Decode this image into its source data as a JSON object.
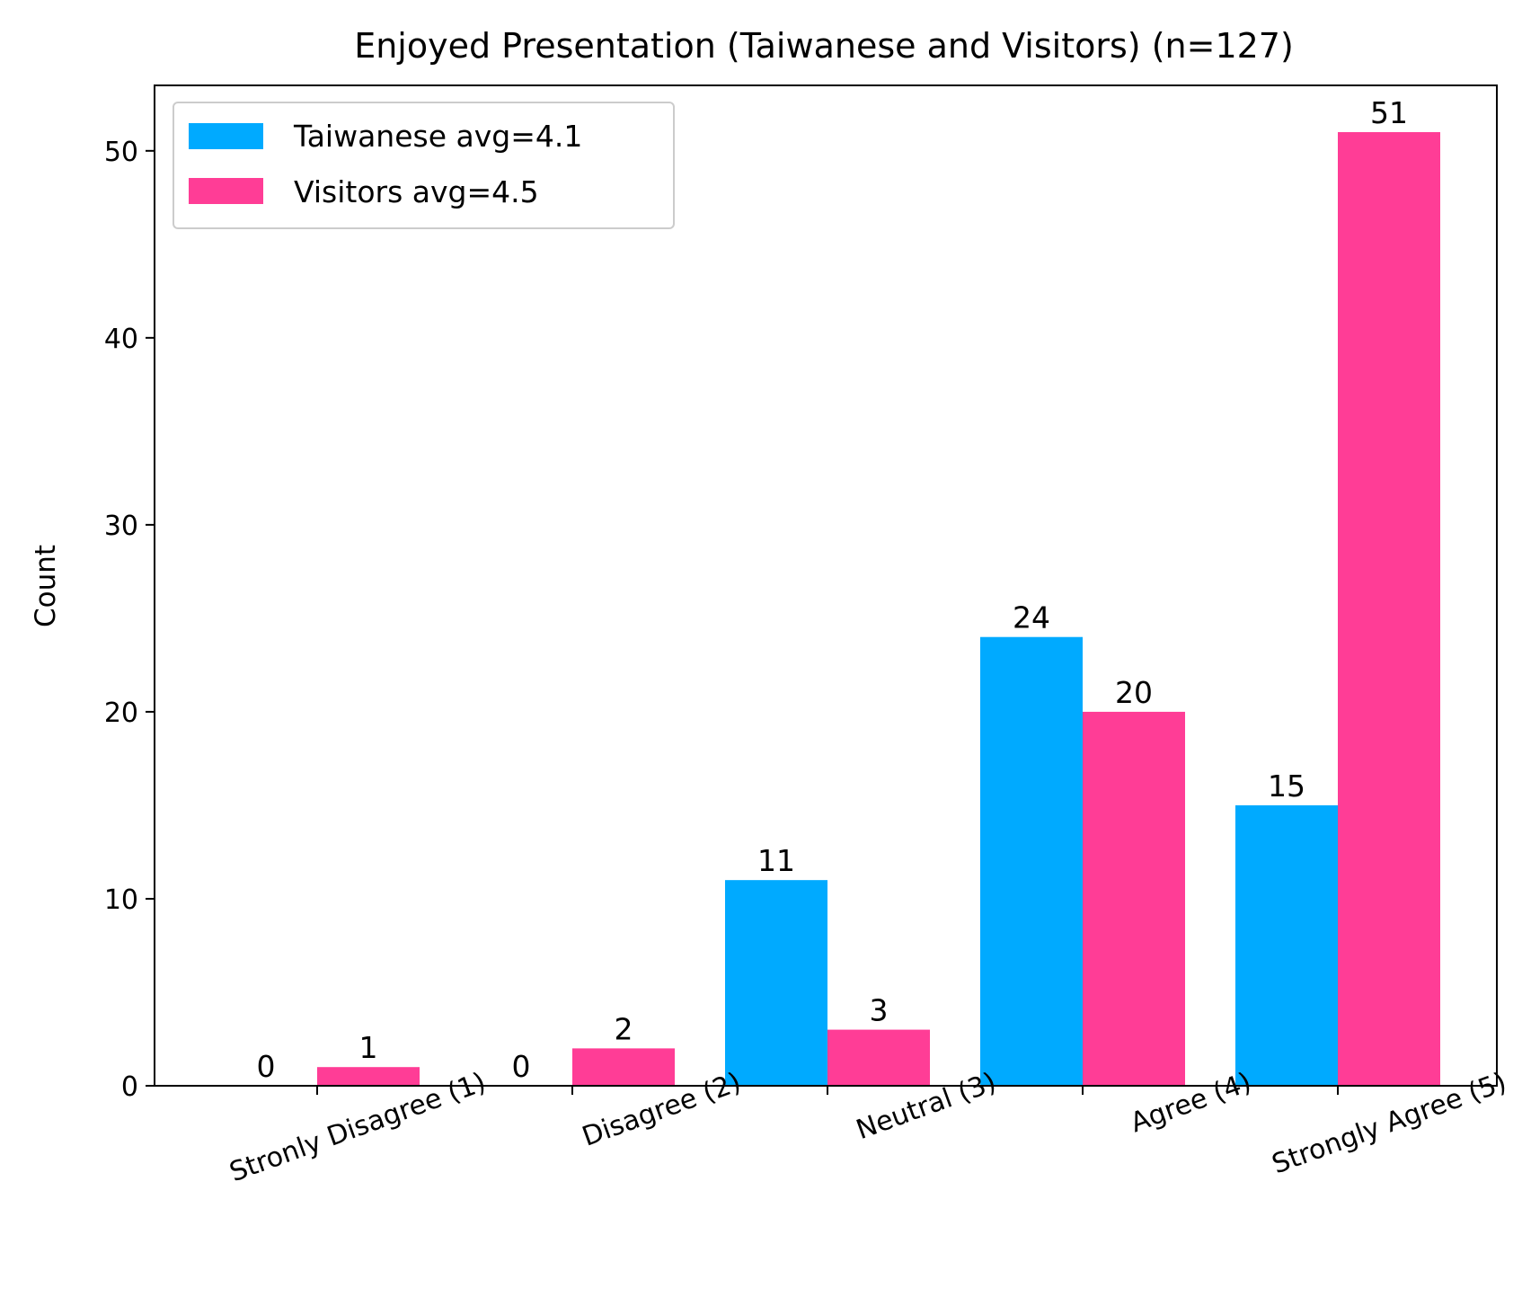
{
  "chart_data": {
    "type": "bar",
    "title": "Enjoyed Presentation (Taiwanese and Visitors) (n=127)",
    "xlabel": "",
    "ylabel": "Count",
    "categories": [
      "Stronly Disagree (1)",
      "Disagree (2)",
      "Neutral (3)",
      "Agree (4)",
      "Strongly Agree (5)"
    ],
    "series": [
      {
        "name": "Taiwanese avg=4.1",
        "color": "#00aaff",
        "values": [
          0,
          0,
          11,
          24,
          15
        ]
      },
      {
        "name": "Visitors avg=4.5",
        "color": "#ff3d96",
        "values": [
          1,
          2,
          3,
          20,
          51
        ]
      }
    ],
    "yticks": [
      0,
      10,
      20,
      30,
      40,
      50
    ],
    "ylim": [
      0,
      53.5
    ],
    "grid": false,
    "legend_position": "top-left",
    "data_labels": true
  }
}
